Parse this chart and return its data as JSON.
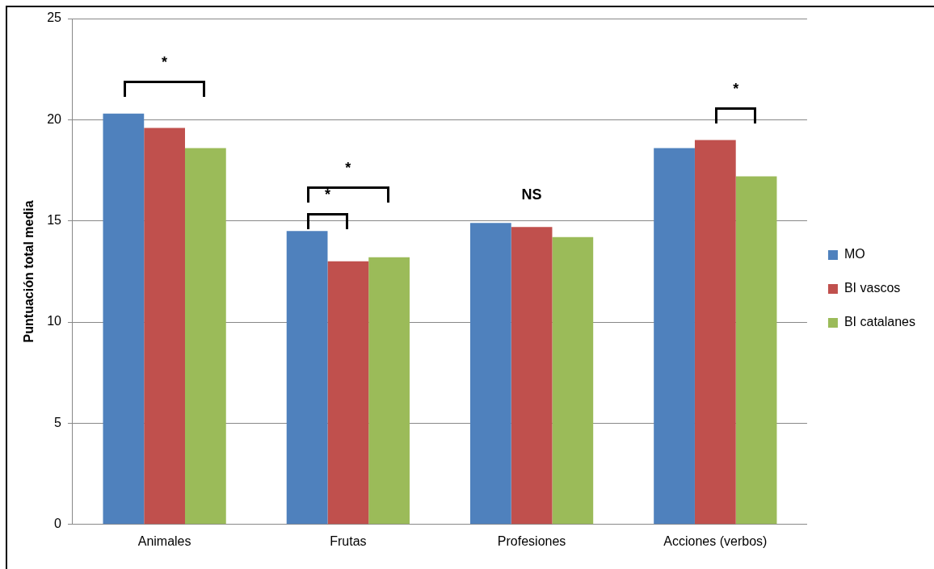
{
  "chart_data": {
    "type": "bar",
    "ylabel": "Puntuación total media",
    "categories": [
      "Animales",
      "Frutas",
      "Profesiones",
      "Acciones (verbos)"
    ],
    "series": [
      {
        "name": "MO",
        "color": "#4f81bd",
        "values": [
          20.3,
          14.5,
          14.9,
          18.6
        ]
      },
      {
        "name": "BI vascos",
        "color": "#c0504d",
        "values": [
          19.6,
          13.0,
          14.7,
          19.0
        ]
      },
      {
        "name": "BI catalanes",
        "color": "#9bbb59",
        "values": [
          18.6,
          13.2,
          14.2,
          17.2
        ]
      }
    ],
    "ylim": [
      0,
      25
    ],
    "yticks": [
      0,
      5,
      10,
      15,
      20,
      25
    ],
    "grid": "y",
    "legend": "right",
    "annotations": [
      "*",
      "*",
      "*",
      "NS",
      "*"
    ]
  }
}
